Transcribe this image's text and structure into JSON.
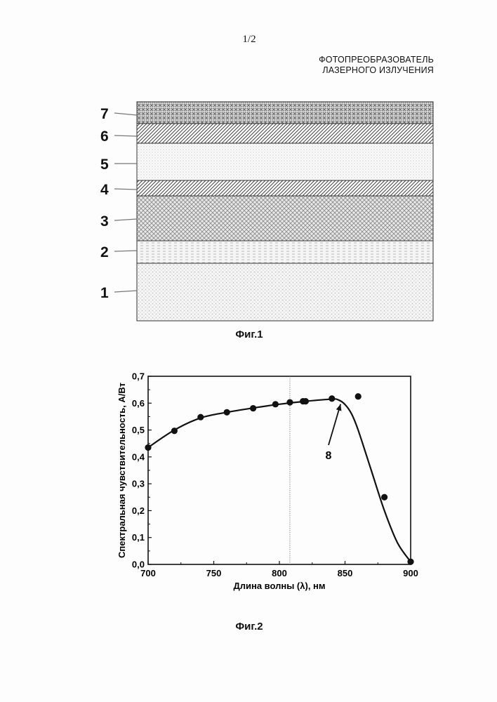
{
  "page_number": "1/2",
  "header": {
    "line1": "ФОТОПРЕОБРАЗОВАТЕЛЬ",
    "line2": "ЛАЗЕРНОГО ИЗЛУЧЕНИЯ"
  },
  "figure1": {
    "caption": "Фиг.1",
    "layers": [
      {
        "label": "7",
        "pattern": "dense-crosshatch"
      },
      {
        "label": "6",
        "pattern": "diagonal-hatch"
      },
      {
        "label": "5",
        "pattern": "fine-dots"
      },
      {
        "label": "4",
        "pattern": "diagonal-hatch"
      },
      {
        "label": "3",
        "pattern": "crosshatch"
      },
      {
        "label": "2",
        "pattern": "horizontal-dashes"
      },
      {
        "label": "1",
        "pattern": "light-dots"
      }
    ]
  },
  "figure2": {
    "caption": "Фиг.2",
    "annotation": "8"
  },
  "chart_data": {
    "type": "scatter",
    "xlabel": "Длина волны (λ), нм",
    "ylabel": "Спектральная чувствительность, А/Вт",
    "xlim": [
      700,
      900
    ],
    "ylim": [
      0.0,
      0.7
    ],
    "x_ticks": [
      "700",
      "750",
      "800",
      "850",
      "900"
    ],
    "y_ticks": [
      "0,0",
      "0,1",
      "0,2",
      "0,3",
      "0,4",
      "0,5",
      "0,6",
      "0,7"
    ],
    "vertical_reference_x": 808,
    "series": [
      {
        "kind": "points",
        "x": [
          700,
          720,
          740,
          760,
          780,
          797,
          808,
          818,
          820,
          840,
          860,
          880,
          900
        ],
        "y": [
          0.435,
          0.497,
          0.548,
          0.566,
          0.581,
          0.596,
          0.603,
          0.607,
          0.607,
          0.617,
          0.625,
          0.25,
          0.01
        ]
      },
      {
        "kind": "fit-line",
        "x": [
          700,
          720,
          740,
          760,
          780,
          800,
          820,
          840,
          845,
          850,
          855,
          860,
          870,
          880,
          890,
          900
        ],
        "y": [
          0.435,
          0.5,
          0.545,
          0.566,
          0.582,
          0.596,
          0.607,
          0.615,
          0.612,
          0.595,
          0.56,
          0.5,
          0.35,
          0.2,
          0.08,
          0.01
        ]
      }
    ],
    "annotation_arrow": {
      "label": "8",
      "points_to": [
        845,
        0.612
      ]
    }
  }
}
